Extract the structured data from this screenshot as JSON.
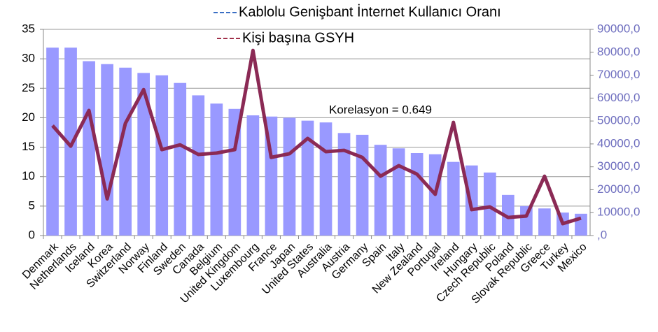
{
  "chart_data": {
    "type": "bar",
    "annotation": "Korelasyon = 0.649",
    "categories": [
      "Denmark",
      "Netherlands",
      "Iceland",
      "Korea",
      "Switzerland",
      "Norway",
      "Finland",
      "Sweden",
      "Canada",
      "Belgium",
      "United Kingdom",
      "Luxembourg",
      "France",
      "Japan",
      "United States",
      "Australia",
      "Austria",
      "Germany",
      "Spain",
      "Italy",
      "New Zealand",
      "Portugal",
      "Ireland",
      "Hungary",
      "Czech Republic",
      "Poland",
      "Slovak Republic",
      "Greece",
      "Turkey",
      "Mexico"
    ],
    "series": [
      {
        "name": "Kablolu Genişbant İnternet Kullanıcı Oranı",
        "type": "bar",
        "color": "#9999ff",
        "legend_color": "#3a6fc4",
        "values": [
          31.9,
          31.9,
          29.6,
          29.1,
          28.5,
          27.6,
          27.2,
          25.9,
          23.8,
          22.4,
          21.5,
          20.4,
          20.2,
          20.0,
          19.5,
          19.2,
          17.4,
          17.1,
          15.4,
          14.8,
          14.0,
          13.8,
          12.5,
          11.9,
          10.7,
          6.9,
          5.0,
          4.6,
          3.9,
          3.7
        ]
      },
      {
        "name": "Kişi başına GSYH",
        "type": "line",
        "axis": "y2",
        "color": "#8b2a55",
        "legend_color": "#a0304a",
        "values": [
          48000,
          39000,
          54600,
          16000,
          49000,
          63700,
          37500,
          39600,
          35400,
          36000,
          37500,
          80800,
          34100,
          35700,
          42400,
          36600,
          37200,
          34100,
          25900,
          30500,
          26800,
          18000,
          49400,
          11300,
          12500,
          7900,
          8500,
          25900,
          5200,
          7600
        ]
      }
    ],
    "ylim": [
      0,
      35
    ],
    "yticks": [
      0,
      5,
      10,
      15,
      20,
      25,
      30,
      35
    ],
    "y2lim": [
      0,
      90000
    ],
    "y2ticks": [
      {
        "value": 0,
        "label": ",0"
      },
      {
        "value": 10000,
        "label": "10000,0"
      },
      {
        "value": 20000,
        "label": "20000,0"
      },
      {
        "value": 30000,
        "label": "30000,0"
      },
      {
        "value": 40000,
        "label": "40000,0"
      },
      {
        "value": 50000,
        "label": "50000,0"
      },
      {
        "value": 60000,
        "label": "60000,0"
      },
      {
        "value": 70000,
        "label": "70000,0"
      },
      {
        "value": 80000,
        "label": "80000,0"
      },
      {
        "value": 90000,
        "label": "90000,0"
      }
    ],
    "grid": true
  }
}
